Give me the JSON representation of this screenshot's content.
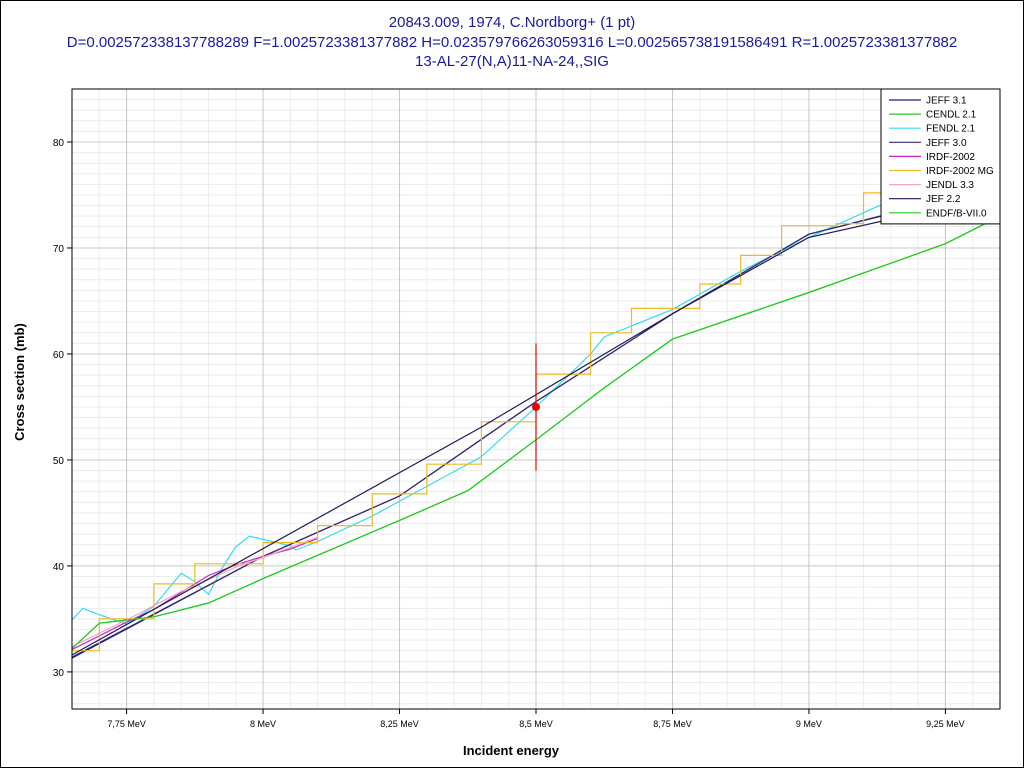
{
  "chart_data": {
    "type": "line",
    "title": "20843.009, 1974, C.Nordborg+ (1 pt)",
    "subtitle": "D=0.002572338137788289 F=1.0025723381377882 H=0.023579766263059316 L=0.002565738191586491 R=1.0025723381377882",
    "subtitle2": "13-AL-27(N,A)11-NA-24,,SIG",
    "xlabel": "Incident energy",
    "ylabel": "Cross section (mb)",
    "xlim": [
      7.65,
      9.35
    ],
    "ylim": [
      26.5,
      85
    ],
    "x_ticks": [
      {
        "value": 7.75,
        "label": "7,75 MeV"
      },
      {
        "value": 8.0,
        "label": "8 MeV"
      },
      {
        "value": 8.25,
        "label": "8,25 MeV"
      },
      {
        "value": 8.5,
        "label": "8,5 MeV"
      },
      {
        "value": 8.75,
        "label": "8,75 MeV"
      },
      {
        "value": 9.0,
        "label": "9 MeV"
      },
      {
        "value": 9.25,
        "label": "9,25 MeV"
      }
    ],
    "y_ticks": [
      {
        "value": 30,
        "label": "30"
      },
      {
        "value": 40,
        "label": "40"
      },
      {
        "value": 50,
        "label": "50"
      },
      {
        "value": 60,
        "label": "60"
      },
      {
        "value": 70,
        "label": "70"
      },
      {
        "value": 80,
        "label": "80"
      }
    ],
    "grid": true,
    "legend_position": "top-right",
    "series": [
      {
        "name": "JEFF 3.1",
        "color": "#1a1a8c",
        "step": false,
        "points": [
          [
            7.65,
            31.3
          ],
          [
            8.0,
            40.9
          ],
          [
            8.25,
            46.6
          ],
          [
            8.5,
            55.5
          ],
          [
            8.75,
            63.8
          ],
          [
            9.0,
            71.3
          ],
          [
            9.35,
            75.8
          ]
        ]
      },
      {
        "name": "CENDL 2.1",
        "color": "#22cc22",
        "step": false,
        "points": [
          [
            7.65,
            32.2
          ],
          [
            7.7,
            34.6
          ],
          [
            7.8,
            35.2
          ],
          [
            7.9,
            36.5
          ],
          [
            8.0,
            38.8
          ],
          [
            8.1,
            41.0
          ],
          [
            8.25,
            44.3
          ],
          [
            8.375,
            47.1
          ],
          [
            8.5,
            51.9
          ],
          [
            8.625,
            56.8
          ],
          [
            8.75,
            61.4
          ],
          [
            9.0,
            65.8
          ],
          [
            9.25,
            70.4
          ],
          [
            9.35,
            73.0
          ]
        ]
      },
      {
        "name": "FENDL 2.1",
        "color": "#33ddee",
        "step": false,
        "points": [
          [
            7.65,
            34.9
          ],
          [
            7.67,
            36.0
          ],
          [
            7.7,
            35.4
          ],
          [
            7.75,
            34.5
          ],
          [
            7.8,
            36.2
          ],
          [
            7.85,
            39.3
          ],
          [
            7.875,
            38.5
          ],
          [
            7.9,
            37.3
          ],
          [
            7.925,
            39.8
          ],
          [
            7.95,
            41.8
          ],
          [
            7.975,
            42.8
          ],
          [
            8.05,
            41.9
          ],
          [
            8.06,
            41.5
          ],
          [
            8.1,
            42.3
          ],
          [
            8.2,
            44.7
          ],
          [
            8.3,
            47.5
          ],
          [
            8.4,
            50.3
          ],
          [
            8.5,
            55.0
          ],
          [
            8.6,
            60.0
          ],
          [
            8.625,
            61.6
          ],
          [
            8.75,
            64.2
          ],
          [
            8.875,
            67.8
          ],
          [
            9.0,
            71.0
          ],
          [
            9.125,
            73.9
          ],
          [
            9.25,
            76.2
          ],
          [
            9.35,
            77.5
          ]
        ]
      },
      {
        "name": "JEFF 3.0",
        "color": "#3a2a70",
        "step": false,
        "points": [
          [
            7.65,
            31.4
          ],
          [
            8.0,
            40.9
          ],
          [
            8.25,
            46.6
          ],
          [
            8.5,
            55.5
          ],
          [
            8.75,
            63.8
          ],
          [
            9.0,
            71.3
          ],
          [
            9.35,
            75.9
          ]
        ]
      },
      {
        "name": "IRDF-2002",
        "color": "#cc22cc",
        "step": false,
        "points": [
          [
            7.65,
            32.1
          ],
          [
            7.75,
            34.7
          ],
          [
            7.8,
            35.9
          ],
          [
            7.85,
            37.5
          ],
          [
            7.9,
            39.1
          ],
          [
            7.95,
            40.1
          ],
          [
            8.0,
            40.9
          ],
          [
            8.05,
            41.6
          ],
          [
            8.1,
            42.6
          ]
        ]
      },
      {
        "name": "IRDF-2002 MG",
        "color": "#eebb22",
        "step": true,
        "points": [
          [
            7.65,
            32.0
          ],
          [
            7.7,
            35.0
          ],
          [
            7.75,
            35.0
          ],
          [
            7.8,
            38.3
          ],
          [
            7.85,
            38.3
          ],
          [
            7.875,
            40.2
          ],
          [
            7.925,
            40.2
          ],
          [
            8.0,
            42.2
          ],
          [
            8.05,
            42.2
          ],
          [
            8.1,
            43.8
          ],
          [
            8.2,
            46.8
          ],
          [
            8.25,
            46.8
          ],
          [
            8.3,
            49.6
          ],
          [
            8.35,
            49.6
          ],
          [
            8.4,
            53.6
          ],
          [
            8.5,
            58.1
          ],
          [
            8.6,
            62.0
          ],
          [
            8.675,
            64.3
          ],
          [
            8.75,
            64.3
          ],
          [
            8.8,
            66.6
          ],
          [
            8.875,
            69.3
          ],
          [
            8.95,
            72.1
          ],
          [
            9.05,
            72.3
          ],
          [
            9.1,
            75.2
          ],
          [
            9.2,
            77.0
          ],
          [
            9.35,
            77.0
          ]
        ]
      },
      {
        "name": "JENDL 3.3",
        "color": "#f0a8b8",
        "step": false,
        "points": [
          [
            7.65,
            32.4
          ],
          [
            7.75,
            34.9
          ],
          [
            7.85,
            37.6
          ],
          [
            7.9,
            38.7
          ],
          [
            7.95,
            39.9
          ],
          [
            8.0,
            40.8
          ],
          [
            8.1,
            42.7
          ]
        ]
      },
      {
        "name": "JEF 2.2",
        "color": "#1a1a5c",
        "step": false,
        "points": [
          [
            7.65,
            31.6
          ],
          [
            8.4,
            53.1
          ],
          [
            8.75,
            63.8
          ],
          [
            9.0,
            71.0
          ],
          [
            9.35,
            75.0
          ]
        ]
      },
      {
        "name": "ENDF/B-VII.0",
        "color": "#22cc22",
        "step": false,
        "points": [
          [
            7.65,
            32.2
          ],
          [
            7.7,
            34.6
          ],
          [
            7.8,
            35.2
          ],
          [
            7.9,
            36.5
          ],
          [
            8.0,
            38.8
          ],
          [
            8.1,
            41.0
          ],
          [
            8.25,
            44.3
          ],
          [
            8.375,
            47.1
          ],
          [
            8.5,
            51.9
          ],
          [
            8.625,
            56.8
          ],
          [
            8.75,
            61.4
          ],
          [
            9.0,
            65.8
          ],
          [
            9.25,
            70.4
          ],
          [
            9.35,
            73.0
          ]
        ]
      }
    ],
    "experimental_points": [
      {
        "x": 8.5,
        "y": 55.0,
        "y_err_low": 49.0,
        "y_err_high": 61.0,
        "color": "#ee0000"
      }
    ]
  }
}
